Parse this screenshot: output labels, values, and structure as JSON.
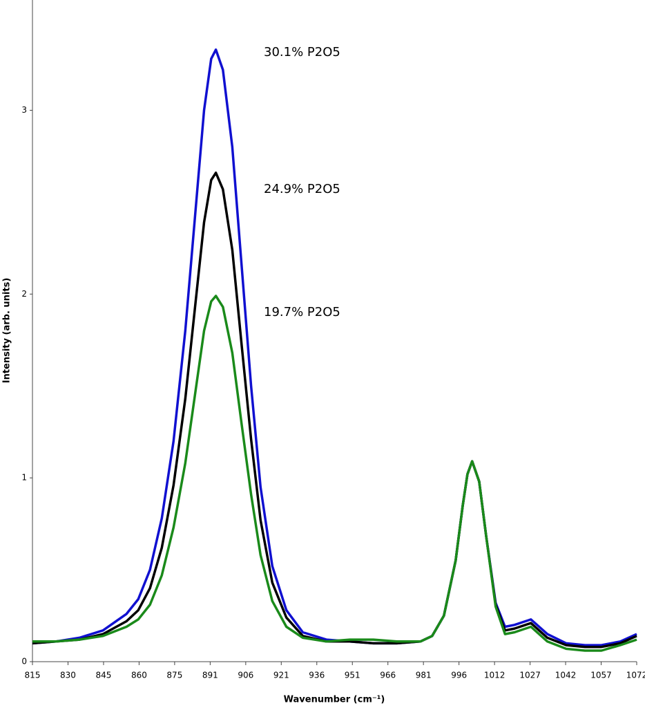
{
  "chart_data": {
    "type": "line",
    "xlabel": "Wavenumber (cm⁻¹)",
    "ylabel": "Intensity (arb. units)",
    "x": [
      815,
      825,
      835,
      845,
      855,
      860,
      865,
      870,
      875,
      880,
      884,
      888,
      891,
      893,
      896,
      900,
      904,
      908,
      912,
      917,
      923,
      930,
      940,
      950,
      960,
      970,
      980,
      985,
      990,
      995,
      998,
      1000,
      1002,
      1005,
      1008,
      1012,
      1016,
      1020,
      1027,
      1034,
      1042,
      1050,
      1057,
      1065,
      1072
    ],
    "series": [
      {
        "name": "30.1% P2O5",
        "color": "#1010d0",
        "values": [
          0.1,
          0.11,
          0.13,
          0.17,
          0.26,
          0.34,
          0.5,
          0.78,
          1.2,
          1.8,
          2.4,
          3.0,
          3.28,
          3.33,
          3.22,
          2.8,
          2.15,
          1.5,
          0.95,
          0.52,
          0.28,
          0.16,
          0.12,
          0.11,
          0.1,
          0.1,
          0.11,
          0.14,
          0.25,
          0.55,
          0.85,
          1.02,
          1.09,
          0.98,
          0.68,
          0.32,
          0.19,
          0.2,
          0.23,
          0.15,
          0.1,
          0.09,
          0.09,
          0.11,
          0.15
        ]
      },
      {
        "name": "24.9% P2O5",
        "color": "#000000",
        "values": [
          0.1,
          0.11,
          0.12,
          0.15,
          0.22,
          0.28,
          0.4,
          0.62,
          0.96,
          1.43,
          1.91,
          2.39,
          2.62,
          2.66,
          2.57,
          2.24,
          1.72,
          1.21,
          0.77,
          0.43,
          0.24,
          0.14,
          0.11,
          0.11,
          0.1,
          0.1,
          0.11,
          0.14,
          0.25,
          0.55,
          0.85,
          1.02,
          1.09,
          0.98,
          0.68,
          0.31,
          0.17,
          0.18,
          0.21,
          0.13,
          0.09,
          0.08,
          0.08,
          0.1,
          0.14
        ]
      },
      {
        "name": "19.7% P2O5",
        "color": "#1a8a1a",
        "values": [
          0.11,
          0.11,
          0.12,
          0.14,
          0.19,
          0.23,
          0.31,
          0.47,
          0.73,
          1.08,
          1.44,
          1.8,
          1.96,
          1.99,
          1.93,
          1.68,
          1.29,
          0.91,
          0.58,
          0.33,
          0.19,
          0.13,
          0.11,
          0.12,
          0.12,
          0.11,
          0.11,
          0.14,
          0.25,
          0.55,
          0.85,
          1.02,
          1.09,
          0.98,
          0.68,
          0.3,
          0.15,
          0.16,
          0.19,
          0.11,
          0.07,
          0.06,
          0.06,
          0.09,
          0.12
        ]
      }
    ],
    "xlim": [
      815,
      1072
    ],
    "xticks": [
      815,
      {
        "value": 830.12,
        "label": "830"
      },
      {
        "value": 845.24,
        "label": "845"
      },
      {
        "value": 860.35,
        "label": "860"
      },
      {
        "value": 875.47,
        "label": "875"
      },
      {
        "value": 890.59,
        "label": "891"
      },
      {
        "value": 905.71,
        "label": "906"
      },
      {
        "value": 920.82,
        "label": "921"
      },
      {
        "value": 935.94,
        "label": "936"
      },
      {
        "value": 951.06,
        "label": "951"
      },
      {
        "value": 966.18,
        "label": "966"
      },
      {
        "value": 981.29,
        "label": "981"
      },
      {
        "value": 996.41,
        "label": "996"
      },
      {
        "value": 1011.53,
        "label": "1012"
      },
      {
        "value": 1026.65,
        "label": "1027"
      },
      {
        "value": 1041.76,
        "label": "1042"
      },
      {
        "value": 1056.88,
        "label": "1057"
      },
      1072
    ],
    "ylim": [
      0,
      3.6
    ],
    "yticks": [
      0,
      1,
      2,
      3
    ],
    "grid": false
  }
}
